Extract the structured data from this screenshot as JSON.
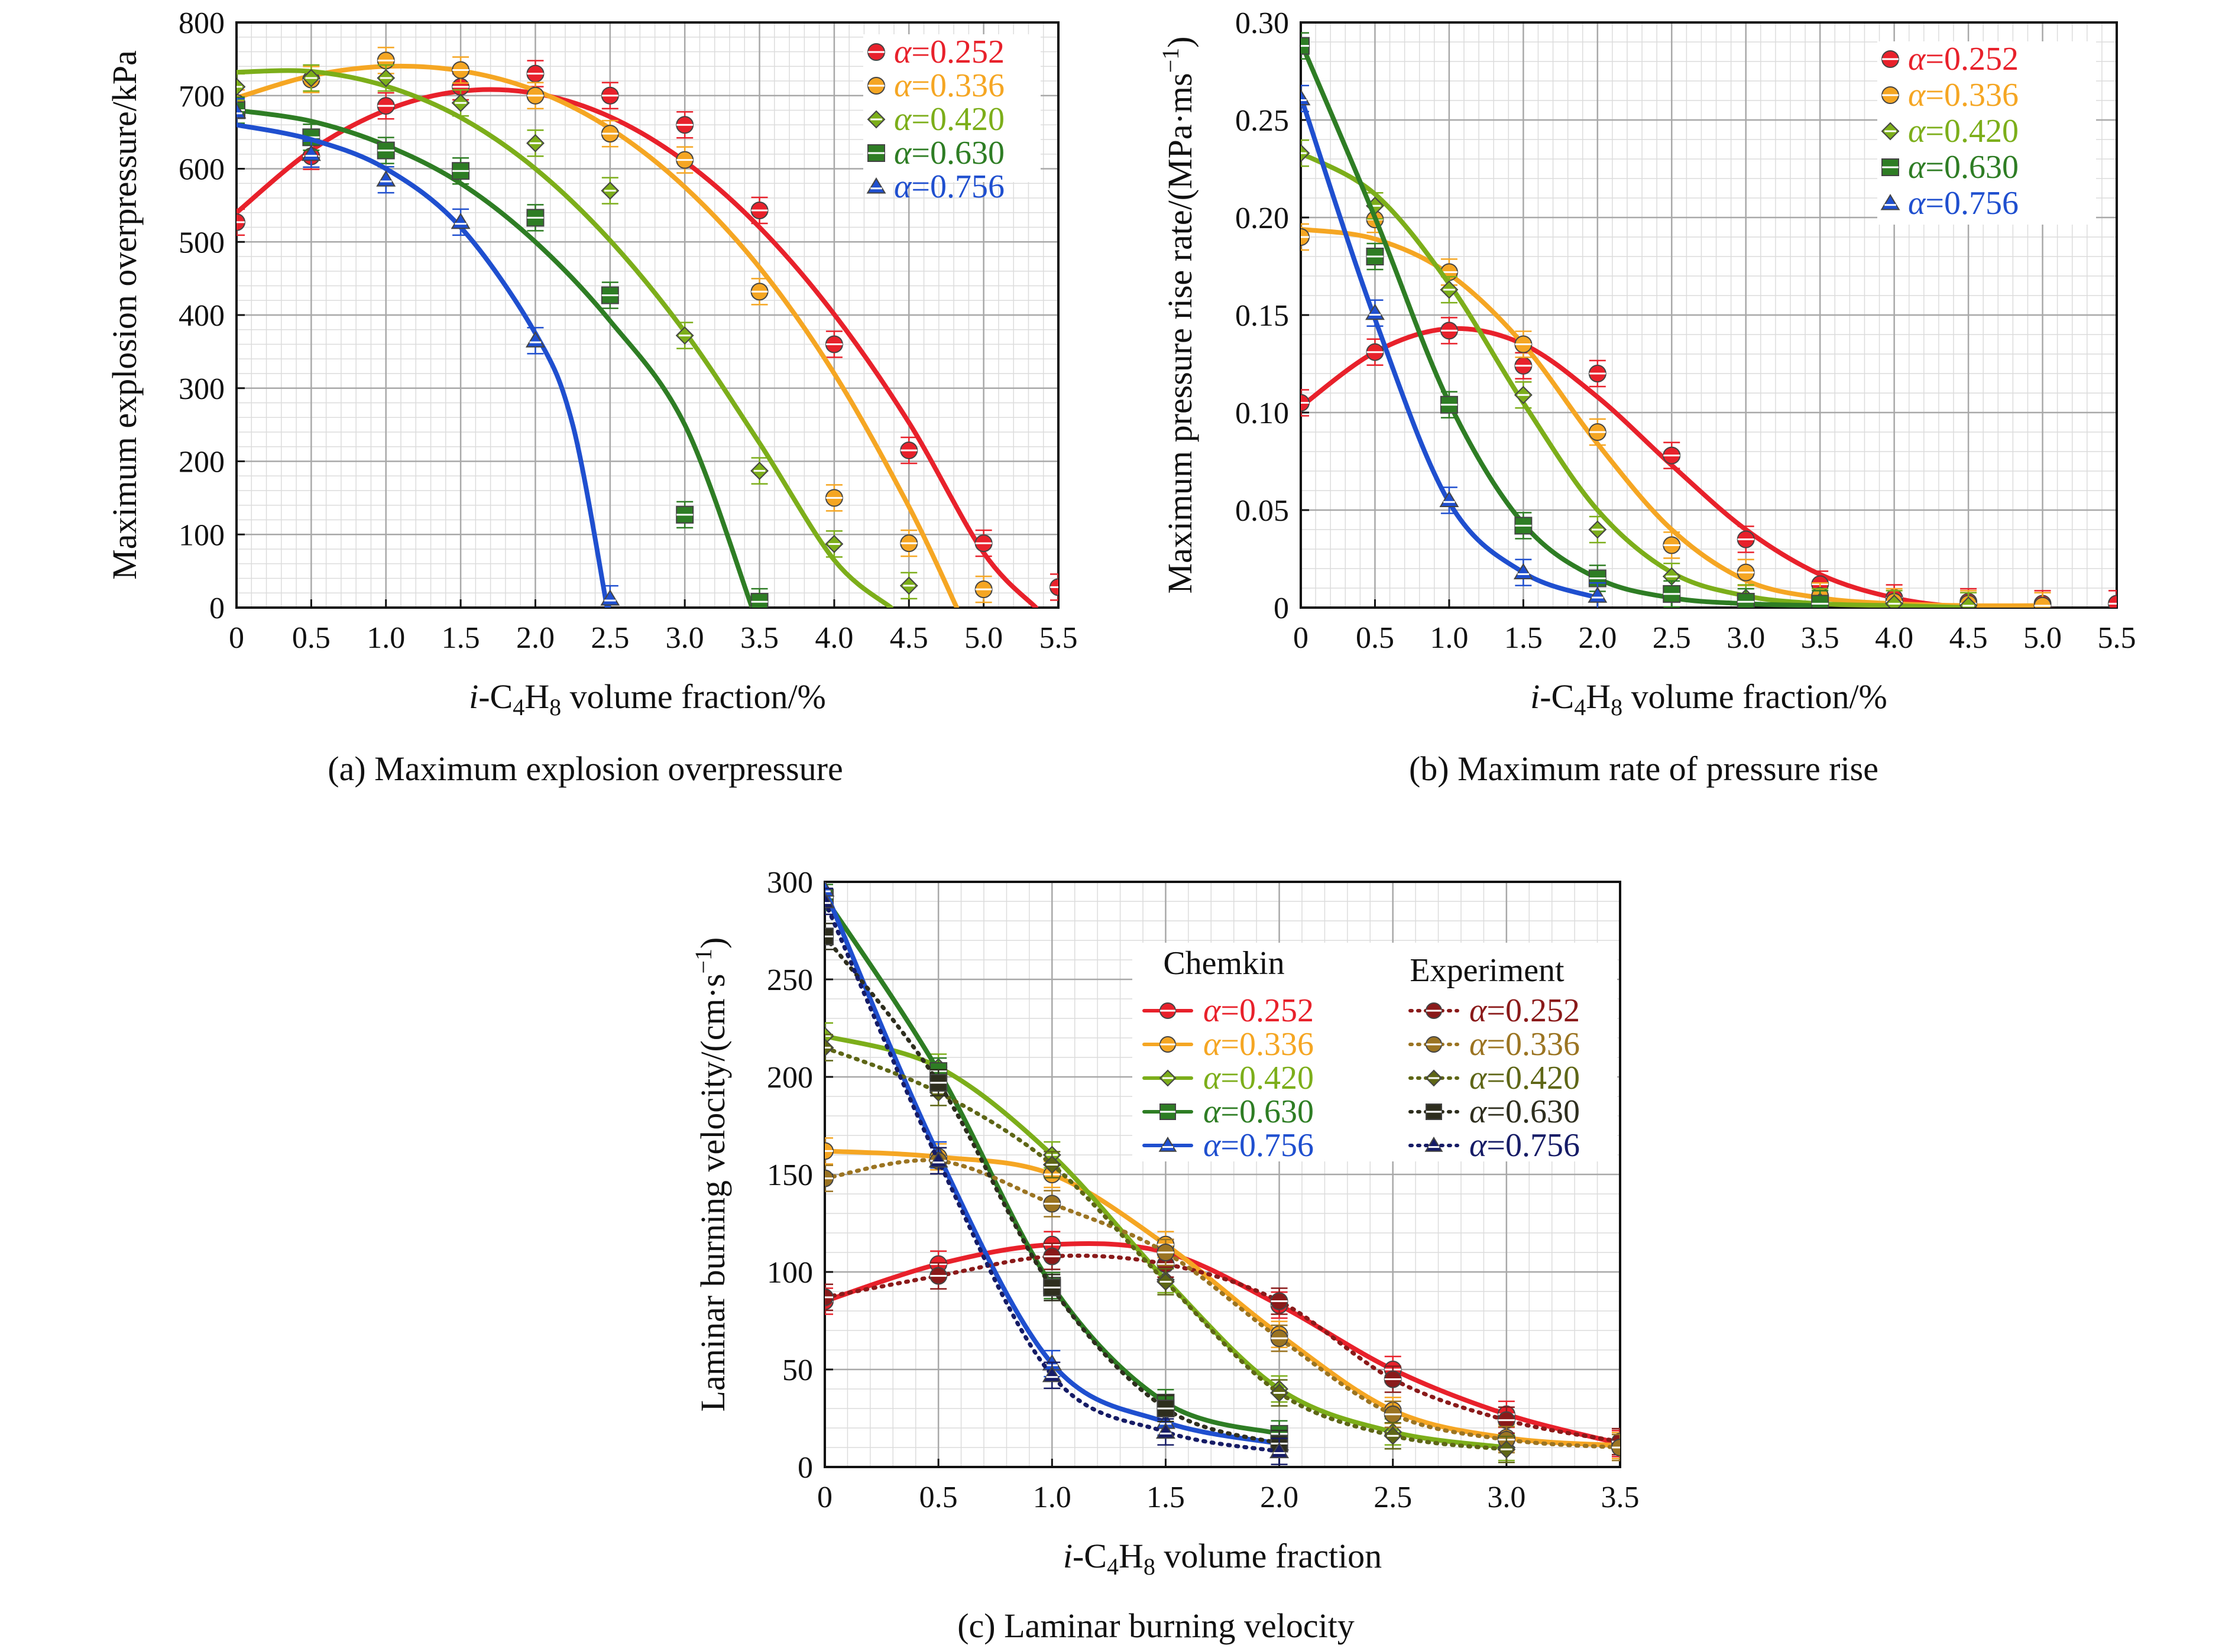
{
  "figure": {
    "captions": [
      "(a) Maximum explosion overpressure",
      "(b) Maximum rate of pressure rise",
      "(c) Laminar burning velocity"
    ]
  },
  "colors": {
    "alpha_0_252": "#e8212b",
    "alpha_0_336": "#f5a623",
    "alpha_0_420": "#7cae1a",
    "alpha_0_630": "#2e7d24",
    "alpha_0_756": "#1f4fcf",
    "exp_0_252": "#8a1a1a",
    "exp_0_336": "#9b7422",
    "exp_0_420": "#5e6616",
    "exp_0_630": "#2e2e1e",
    "exp_0_756": "#161c66"
  },
  "chart_data": [
    {
      "id": "a",
      "type": "scatter",
      "caption": "(a) Maximum explosion overpressure",
      "xlabel_parts": [
        "i",
        "-C",
        "4",
        "H",
        "8",
        " volume fraction/%"
      ],
      "ylabel": "Maximum explosion overpressure/kPa",
      "xlim": [
        0,
        5.5
      ],
      "ylim": [
        0,
        800
      ],
      "xticks": [
        0,
        0.5,
        1.0,
        1.5,
        2.0,
        2.5,
        3.0,
        3.5,
        4.0,
        4.5,
        5.0,
        5.5
      ],
      "xtick_labels": [
        "0",
        "0.5",
        "1.0",
        "1.5",
        "2.0",
        "2.5",
        "3.0",
        "3.5",
        "4.0",
        "4.5",
        "5.0",
        "5.5"
      ],
      "yticks": [
        0,
        100,
        200,
        300,
        400,
        500,
        600,
        700,
        800
      ],
      "ytick_labels": [
        "0",
        "100",
        "200",
        "300",
        "400",
        "500",
        "600",
        "700",
        "800"
      ],
      "grid": true,
      "legend": "top-right",
      "series": [
        {
          "name": "α=0.252",
          "color": "#e8212b",
          "marker": "circle",
          "x": [
            0,
            0.5,
            1.0,
            1.5,
            2.0,
            2.5,
            3.0,
            3.5,
            4.0,
            4.5,
            5.0,
            5.5
          ],
          "y": [
            527,
            617,
            686,
            712,
            730,
            700,
            660,
            543,
            360,
            215,
            88,
            28
          ],
          "fit_x": [
            0,
            0.5,
            1.0,
            1.5,
            2.0,
            2.5,
            3.0,
            3.5,
            4.0,
            4.5,
            5.0,
            5.35
          ],
          "fit_y": [
            540,
            625,
            680,
            706,
            703,
            671,
            610,
            520,
            401,
            253,
            75,
            0
          ]
        },
        {
          "name": "α=0.336",
          "color": "#f5a623",
          "marker": "circle",
          "x": [
            0,
            0.5,
            1.0,
            1.5,
            2.0,
            2.5,
            3.0,
            3.5,
            4.0,
            4.5,
            5.0
          ],
          "y": [
            690,
            722,
            748,
            735,
            700,
            648,
            612,
            432,
            150,
            88,
            25
          ],
          "fit_x": [
            0,
            0.5,
            1.0,
            1.5,
            2.0,
            2.5,
            3.0,
            3.5,
            4.0,
            4.5,
            4.82
          ],
          "fit_y": [
            697,
            727,
            740,
            734,
            707,
            655,
            575,
            465,
            320,
            138,
            0
          ]
        },
        {
          "name": "α=0.420",
          "color": "#7cae1a",
          "marker": "diamond",
          "x": [
            0,
            0.5,
            1.0,
            1.5,
            2.0,
            2.5,
            3.0,
            3.5,
            4.0,
            4.5
          ],
          "y": [
            712,
            724,
            724,
            690,
            635,
            570,
            372,
            187,
            87,
            30
          ],
          "fit_x": [
            0,
            0.5,
            1.0,
            1.5,
            2.0,
            2.5,
            3.0,
            3.5,
            4.0,
            4.38
          ],
          "fit_y": [
            732,
            733,
            713,
            670,
            600,
            502,
            377,
            225,
            65,
            0
          ]
        },
        {
          "name": "α=0.630",
          "color": "#2e7d24",
          "marker": "square",
          "x": [
            0,
            0.5,
            1.0,
            1.5,
            2.0,
            2.5,
            3.0,
            3.5
          ],
          "y": [
            680,
            643,
            625,
            597,
            533,
            427,
            127,
            8
          ],
          "fit_x": [
            0,
            0.5,
            1.0,
            1.5,
            2.0,
            2.5,
            3.0,
            3.45
          ],
          "fit_y": [
            680,
            665,
            632,
            580,
            500,
            392,
            250,
            0
          ]
        },
        {
          "name": "α=0.756",
          "color": "#1f4fcf",
          "marker": "triangle",
          "x": [
            0,
            0.5,
            1.0,
            1.5,
            2.0,
            2.5
          ],
          "y": [
            678,
            620,
            585,
            527,
            365,
            12
          ],
          "fit_x": [
            0,
            0.5,
            1.0,
            1.5,
            2.0,
            2.25,
            2.48
          ],
          "fit_y": [
            660,
            640,
            600,
            520,
            375,
            250,
            0
          ]
        }
      ]
    },
    {
      "id": "b",
      "type": "scatter",
      "caption": "(b) Maximum rate of pressure rise",
      "xlabel_parts": [
        "i",
        "-C",
        "4",
        "H",
        "8",
        " volume fraction/%"
      ],
      "ylabel": "Maximum pressure rise rate/(MPa·ms",
      "ylabel_sup": "−1",
      "ylabel_close": ")",
      "xlim": [
        0,
        5.5
      ],
      "ylim": [
        0,
        0.3
      ],
      "xticks": [
        0,
        0.5,
        1.0,
        1.5,
        2.0,
        2.5,
        3.0,
        3.5,
        4.0,
        4.5,
        5.0,
        5.5
      ],
      "xtick_labels": [
        "0",
        "0.5",
        "1.0",
        "1.5",
        "2.0",
        "2.5",
        "3.0",
        "3.5",
        "4.0",
        "4.5",
        "5.0",
        "5.5"
      ],
      "yticks": [
        0,
        0.05,
        0.1,
        0.15,
        0.2,
        0.25,
        0.3
      ],
      "ytick_labels": [
        "0",
        "0.05",
        "0.10",
        "0.15",
        "0.20",
        "0.25",
        "0.30"
      ],
      "grid": true,
      "legend": "top-right",
      "series": [
        {
          "name": "α=0.252",
          "color": "#e8212b",
          "marker": "circle",
          "x": [
            0,
            0.5,
            1.0,
            1.5,
            2.0,
            2.5,
            3.0,
            3.5,
            4.0,
            4.5,
            5.0,
            5.5
          ],
          "y": [
            0.105,
            0.131,
            0.142,
            0.124,
            0.12,
            0.078,
            0.035,
            0.012,
            0.005,
            0.003,
            0.002,
            0.002
          ],
          "fit_x": [
            0,
            0.5,
            1.0,
            1.5,
            2.0,
            2.5,
            3.0,
            3.5,
            4.0,
            4.5,
            5.0,
            5.5
          ],
          "fit_y": [
            0.103,
            0.131,
            0.143,
            0.135,
            0.108,
            0.073,
            0.04,
            0.017,
            0.005,
            0.0,
            -0.001,
            -0.002
          ]
        },
        {
          "name": "α=0.336",
          "color": "#f5a623",
          "marker": "circle",
          "x": [
            0,
            0.5,
            1.0,
            1.5,
            2.0,
            2.5,
            3.0,
            3.5,
            4.0,
            4.5,
            5.0
          ],
          "y": [
            0.19,
            0.199,
            0.172,
            0.135,
            0.09,
            0.032,
            0.018,
            0.006,
            0.003,
            0.002,
            0.001
          ],
          "fit_x": [
            0,
            0.5,
            1.0,
            1.5,
            2.0,
            2.5,
            3.0,
            3.5,
            4.0,
            4.5,
            5.0
          ],
          "fit_y": [
            0.194,
            0.189,
            0.171,
            0.135,
            0.084,
            0.04,
            0.014,
            0.005,
            0.002,
            0.001,
            0.001
          ]
        },
        {
          "name": "α=0.420",
          "color": "#7cae1a",
          "marker": "diamond",
          "x": [
            0,
            0.5,
            1.0,
            1.5,
            2.0,
            2.5,
            3.0,
            3.5,
            4.0,
            4.5
          ],
          "y": [
            0.233,
            0.206,
            0.163,
            0.109,
            0.04,
            0.016,
            0.005,
            0.003,
            0.002,
            0.001
          ],
          "fit_x": [
            0,
            0.5,
            1.0,
            1.5,
            2.0,
            2.5,
            3.0,
            3.5,
            4.0,
            4.5
          ],
          "fit_y": [
            0.233,
            0.212,
            0.166,
            0.105,
            0.05,
            0.018,
            0.006,
            0.002,
            0.001,
            0.0
          ]
        },
        {
          "name": "α=0.630",
          "color": "#2e7d24",
          "marker": "square",
          "x": [
            0,
            0.5,
            1.0,
            1.5,
            2.0,
            2.5,
            3.0,
            3.5
          ],
          "y": [
            0.288,
            0.18,
            0.104,
            0.042,
            0.015,
            0.007,
            0.003,
            0.002
          ],
          "fit_x": [
            0,
            0.5,
            1.0,
            1.5,
            2.0,
            2.5,
            3.0,
            3.5
          ],
          "fit_y": [
            0.29,
            0.2,
            0.105,
            0.043,
            0.015,
            0.005,
            0.002,
            0.001
          ]
        },
        {
          "name": "α=0.756",
          "color": "#1f4fcf",
          "marker": "triangle",
          "x": [
            0,
            0.5,
            1.0,
            1.5,
            2.0
          ],
          "y": [
            0.261,
            0.151,
            0.055,
            0.018,
            0.006
          ],
          "fit_x": [
            0,
            0.5,
            1.0,
            1.5,
            2.0
          ],
          "fit_y": [
            0.262,
            0.148,
            0.054,
            0.018,
            0.005
          ]
        }
      ]
    },
    {
      "id": "c",
      "type": "scatter",
      "caption": "(c) Laminar burning velocity",
      "xlabel_parts": [
        "i",
        "-C",
        "4",
        "H",
        "8",
        " volume fraction"
      ],
      "ylabel": "Laminar burning velocity/(cm·s",
      "ylabel_sup": "−1",
      "ylabel_close": ")",
      "xlim": [
        0,
        3.5
      ],
      "ylim": [
        0,
        300
      ],
      "xticks": [
        0,
        0.5,
        1.0,
        1.5,
        2.0,
        2.5,
        3.0,
        3.5
      ],
      "xtick_labels": [
        "0",
        "0.5",
        "1.0",
        "1.5",
        "2.0",
        "2.5",
        "3.0",
        "3.5"
      ],
      "yticks": [
        0,
        50,
        100,
        150,
        200,
        250,
        300
      ],
      "ytick_labels": [
        "0",
        "50",
        "100",
        "150",
        "200",
        "250",
        "300"
      ],
      "grid": true,
      "legend": "top-right",
      "legend_groups": [
        "Chemkin",
        "Experiment"
      ],
      "series": [
        {
          "name": "α=0.252",
          "group": "Chemkin",
          "color": "#e8212b",
          "marker": "circle",
          "line": "solid",
          "x": [
            0,
            0.5,
            1.0,
            1.5,
            2.0,
            2.5,
            3.0,
            3.5
          ],
          "y": [
            85,
            104,
            114,
            110,
            83,
            50,
            27,
            12
          ]
        },
        {
          "name": "α=0.336",
          "group": "Chemkin",
          "color": "#f5a623",
          "marker": "circle",
          "line": "solid",
          "x": [
            0,
            0.5,
            1.0,
            1.5,
            2.0,
            2.5,
            3.0,
            3.5
          ],
          "y": [
            162,
            159,
            150,
            114,
            68,
            29,
            15,
            11
          ]
        },
        {
          "name": "α=0.420",
          "group": "Chemkin",
          "color": "#7cae1a",
          "marker": "diamond",
          "line": "solid",
          "x": [
            0,
            0.5,
            1.0,
            1.5,
            2.0,
            2.5,
            3.0
          ],
          "y": [
            221,
            205,
            160,
            96,
            40,
            18,
            10
          ]
        },
        {
          "name": "α=0.630",
          "group": "Chemkin",
          "color": "#2e7d24",
          "marker": "square",
          "line": "solid",
          "x": [
            0,
            0.5,
            1.0,
            1.5,
            2.0
          ],
          "y": [
            292,
            203,
            93,
            33,
            17
          ]
        },
        {
          "name": "α=0.756",
          "group": "Chemkin",
          "color": "#1f4fcf",
          "marker": "triangle",
          "line": "solid",
          "x": [
            0,
            0.5,
            1.0,
            1.5,
            2.0
          ],
          "y": [
            296,
            160,
            53,
            23,
            12
          ]
        },
        {
          "name": "α=0.252",
          "group": "Experiment",
          "color": "#8a1a1a",
          "marker": "circle",
          "line": "dotted",
          "x": [
            0,
            0.5,
            1.0,
            1.5,
            2.0,
            2.5,
            3.0,
            3.5
          ],
          "y": [
            87,
            98,
            108,
            104,
            85,
            45,
            24,
            13
          ]
        },
        {
          "name": "α=0.336",
          "group": "Experiment",
          "color": "#9b7422",
          "marker": "circle",
          "line": "dotted",
          "x": [
            0,
            0.5,
            1.0,
            1.5,
            2.0,
            2.5,
            3.0,
            3.5
          ],
          "y": [
            148,
            157,
            135,
            110,
            66,
            27,
            14,
            10
          ]
        },
        {
          "name": "α=0.420",
          "group": "Experiment",
          "color": "#5e6616",
          "marker": "diamond",
          "line": "dotted",
          "x": [
            0,
            0.5,
            1.0,
            1.5,
            2.0,
            2.5,
            3.0
          ],
          "y": [
            215,
            192,
            155,
            95,
            38,
            16,
            9
          ]
        },
        {
          "name": "α=0.630",
          "group": "Experiment",
          "color": "#2e2e1e",
          "marker": "square",
          "line": "dotted",
          "x": [
            0,
            0.5,
            1.0,
            1.5,
            2.0
          ],
          "y": [
            272,
            197,
            92,
            30,
            12
          ]
        },
        {
          "name": "α=0.756",
          "group": "Experiment",
          "color": "#161c66",
          "marker": "triangle",
          "line": "dotted",
          "x": [
            0,
            0.5,
            1.0,
            1.5,
            2.0
          ],
          "y": [
            290,
            157,
            47,
            18,
            8
          ]
        }
      ]
    }
  ]
}
